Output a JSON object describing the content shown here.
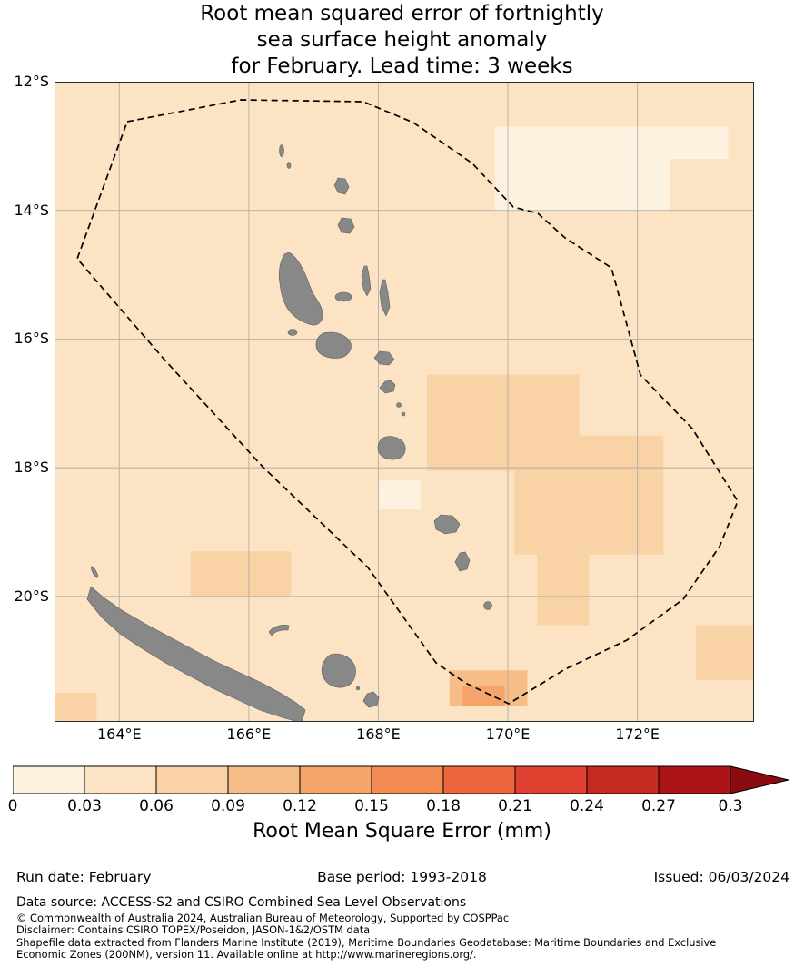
{
  "title": {
    "lines": [
      "Root mean squared error of fortnightly",
      "sea surface height anomaly",
      "for February. Lead time: 3 weeks"
    ]
  },
  "chart_data": {
    "type": "heatmap",
    "title": "Root mean squared error of fortnightly sea surface height anomaly for February. Lead time: 3 weeks",
    "xlabel": "",
    "ylabel": "",
    "lon_range": [
      163.0,
      173.8
    ],
    "lat_range": [
      12.0,
      21.95
    ],
    "grid": true,
    "x_ticks": [
      {
        "value": 164,
        "label": "164°E"
      },
      {
        "value": 166,
        "label": "166°E"
      },
      {
        "value": 168,
        "label": "168°E"
      },
      {
        "value": 170,
        "label": "170°E"
      },
      {
        "value": 172,
        "label": "172°E"
      }
    ],
    "y_ticks": [
      {
        "value": 12,
        "label": "12°S"
      },
      {
        "value": 14,
        "label": "14°S"
      },
      {
        "value": 16,
        "label": "16°S"
      },
      {
        "value": 18,
        "label": "18°S"
      },
      {
        "value": 20,
        "label": "20°S"
      }
    ],
    "base_band": 1,
    "band_ranges_mm": [
      [
        0,
        0.03
      ],
      [
        0.03,
        0.06
      ],
      [
        0.06,
        0.09
      ],
      [
        0.09,
        0.12
      ],
      [
        0.12,
        0.15
      ],
      [
        0.15,
        0.18
      ],
      [
        0.18,
        0.21
      ],
      [
        0.21,
        0.24
      ],
      [
        0.24,
        0.27
      ],
      [
        0.27,
        0.3
      ]
    ],
    "patches": [
      {
        "lon": [
          169.8,
          172.5
        ],
        "lat": [
          12.7,
          14.0
        ],
        "band": 0
      },
      {
        "lon": [
          172.5,
          173.4
        ],
        "lat": [
          12.7,
          13.2
        ],
        "band": 0
      },
      {
        "lon": [
          168.0,
          168.65
        ],
        "lat": [
          18.2,
          18.65
        ],
        "band": 0
      },
      {
        "lon": [
          168.75,
          171.1
        ],
        "lat": [
          16.55,
          18.05
        ],
        "band": 2
      },
      {
        "lon": [
          170.1,
          172.4
        ],
        "lat": [
          17.5,
          19.35
        ],
        "band": 2
      },
      {
        "lon": [
          165.1,
          166.65
        ],
        "lat": [
          19.3,
          20.0
        ],
        "band": 2
      },
      {
        "lon": [
          170.45,
          171.25
        ],
        "lat": [
          19.35,
          20.45
        ],
        "band": 2
      },
      {
        "lon": [
          172.9,
          173.8
        ],
        "lat": [
          20.45,
          21.3
        ],
        "band": 2
      },
      {
        "lon": [
          163.0,
          163.65
        ],
        "lat": [
          21.5,
          21.95
        ],
        "band": 2
      },
      {
        "lon": [
          169.1,
          170.3
        ],
        "lat": [
          21.15,
          21.7
        ],
        "band": 3
      },
      {
        "lon": [
          169.3,
          169.95
        ],
        "lat": [
          21.4,
          21.7
        ],
        "band": 4
      }
    ],
    "colorbar": {
      "label": "Root Mean Square Error (mm)",
      "orientation": "horizontal",
      "extend": "max",
      "tick_labels": [
        "0",
        "0.03",
        "0.06",
        "0.09",
        "0.12",
        "0.15",
        "0.18",
        "0.21",
        "0.24",
        "0.27",
        "0.3"
      ],
      "colors": [
        "#fdf2e0",
        "#fbe3c4",
        "#f9d2a6",
        "#f7bd88",
        "#f5a56c",
        "#f28a52",
        "#ee663f",
        "#e0402f",
        "#c62b22",
        "#aa1419"
      ],
      "over_color": "#8a0c10"
    }
  },
  "map": {
    "land_color": "#888888",
    "land_edge_color": "#5f5f5f",
    "grid_color": "#a6a6a6",
    "eez_color": "#000000",
    "eez_style": "dashed"
  },
  "footer": {
    "run_date": "Run date: February",
    "base_period": "Base period: 1993-2018",
    "issued": "Issued: 06/03/2024",
    "data_source": "Data source: ACCESS-S2 and CSIRO Combined Sea Level Observations",
    "copyright": "© Commonwealth of Australia 2024, Australian Bureau of Meteorology, Supported by COSPPac",
    "disclaimer": "Disclaimer: Contains CSIRO TOPEX/Poseidon, JASON-1&2/OSTM data",
    "shapefile_line1": "Shapefile data extracted from Flanders Marine Institute (2019), Maritime Boundaries Geodatabase: Maritime Boundaries and Exclusive",
    "shapefile_line2": "Economic Zones (200NM), version 11. Available online at http://www.marineregions.org/."
  }
}
